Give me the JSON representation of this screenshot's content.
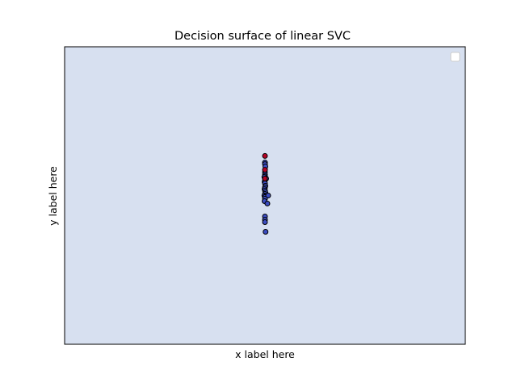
{
  "chart_data": {
    "type": "scatter",
    "title": "Decision surface of linear SVC",
    "xlabel": "x label here",
    "ylabel": "y label here",
    "xlim": [
      -1,
      1
    ],
    "ylim": [
      -1,
      1
    ],
    "xticks_shown": false,
    "yticks_shown": false,
    "grid": false,
    "legend": {
      "placement": "top-right",
      "entries": []
    },
    "background_region_color": "#d7e0f0",
    "series": [
      {
        "color": "#b40426",
        "points": [
          {
            "x": 0.0,
            "y": 0.266
          },
          {
            "x": 0.0,
            "y": 0.173
          },
          {
            "x": 0.0,
            "y": 0.114
          }
        ]
      },
      {
        "color": "#3b4cc0",
        "points": [
          {
            "x": 0.0,
            "y": 0.222
          },
          {
            "x": 0.0,
            "y": 0.211
          },
          {
            "x": 0.002,
            "y": 0.195
          },
          {
            "x": 0.0,
            "y": 0.157
          },
          {
            "x": 0.0,
            "y": 0.141
          },
          {
            "x": 0.0,
            "y": 0.13
          },
          {
            "x": -0.003,
            "y": 0.124
          },
          {
            "x": 0.006,
            "y": 0.114
          },
          {
            "x": 0.0,
            "y": 0.103
          },
          {
            "x": -0.002,
            "y": 0.092
          },
          {
            "x": 0.0,
            "y": 0.081
          },
          {
            "x": 0.002,
            "y": 0.065
          },
          {
            "x": 0.0,
            "y": 0.054
          },
          {
            "x": -0.002,
            "y": 0.043
          },
          {
            "x": 0.0,
            "y": 0.033
          },
          {
            "x": 0.002,
            "y": 0.022
          },
          {
            "x": 0.0,
            "y": 0.011
          },
          {
            "x": -0.003,
            "y": 0.0
          },
          {
            "x": 0.003,
            "y": -0.005
          },
          {
            "x": 0.0,
            "y": -0.011
          },
          {
            "x": 0.016,
            "y": 0.0
          },
          {
            "x": 0.0,
            "y": -0.022
          },
          {
            "x": -0.002,
            "y": -0.038
          },
          {
            "x": 0.012,
            "y": -0.054
          },
          {
            "x": 0.0,
            "y": -0.141
          },
          {
            "x": 0.0,
            "y": -0.163
          },
          {
            "x": 0.0,
            "y": -0.179
          },
          {
            "x": 0.003,
            "y": -0.244
          }
        ]
      }
    ]
  }
}
